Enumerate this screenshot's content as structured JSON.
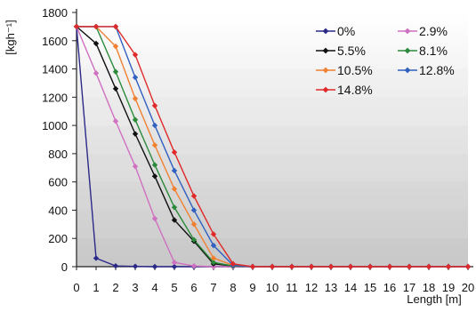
{
  "chart_data": {
    "type": "line",
    "title": "",
    "xlabel": "Length [m]",
    "ylabel": "[kgh⁻¹]",
    "xlim": [
      0,
      20
    ],
    "ylim": [
      0,
      1800
    ],
    "x_ticks": [
      "0",
      "1",
      "2",
      "3",
      "4",
      "5",
      "6",
      "7",
      "8",
      "9",
      "10",
      "11",
      "12",
      "13",
      "14",
      "15",
      "16",
      "17",
      "18",
      "19",
      "20"
    ],
    "y_ticks": [
      "0",
      "200",
      "400",
      "600",
      "800",
      "1000",
      "1200",
      "1400",
      "1600",
      "1800"
    ],
    "legend_position": "top-right",
    "x": [
      0,
      1,
      2,
      3,
      4,
      5,
      6,
      7,
      8,
      9,
      10,
      11,
      12,
      13,
      14,
      15,
      16,
      17,
      18,
      19,
      20
    ],
    "series": [
      {
        "name": "0%",
        "color": "#2b2a8a",
        "values": [
          1700,
          60,
          5,
          2,
          0,
          0,
          0,
          0,
          0,
          0,
          0,
          0,
          0,
          0,
          0,
          0,
          0,
          0,
          0,
          0,
          0
        ]
      },
      {
        "name": "2.9%",
        "color": "#d070c0",
        "values": [
          1700,
          1370,
          1030,
          710,
          340,
          30,
          5,
          0,
          0,
          0,
          0,
          0,
          0,
          0,
          0,
          0,
          0,
          0,
          0,
          0,
          0
        ]
      },
      {
        "name": "5.5%",
        "color": "#111111",
        "values": [
          1700,
          1580,
          1260,
          940,
          640,
          330,
          180,
          20,
          5,
          0,
          0,
          0,
          0,
          0,
          0,
          0,
          0,
          0,
          0,
          0,
          0
        ]
      },
      {
        "name": "8.1%",
        "color": "#2a8a3a",
        "values": [
          1700,
          1700,
          1380,
          1040,
          720,
          420,
          190,
          30,
          5,
          0,
          0,
          0,
          0,
          0,
          0,
          0,
          0,
          0,
          0,
          0,
          0
        ]
      },
      {
        "name": "10.5%",
        "color": "#f08030",
        "values": [
          1700,
          1700,
          1560,
          1190,
          860,
          550,
          300,
          60,
          10,
          0,
          0,
          0,
          0,
          0,
          0,
          0,
          0,
          0,
          0,
          0,
          0
        ]
      },
      {
        "name": "12.8%",
        "color": "#3060c0",
        "values": [
          1700,
          1700,
          1700,
          1340,
          1000,
          680,
          400,
          150,
          10,
          0,
          0,
          0,
          0,
          0,
          0,
          0,
          0,
          0,
          0,
          0,
          0
        ]
      },
      {
        "name": "14.8%",
        "color": "#e02a2a",
        "values": [
          1700,
          1700,
          1700,
          1500,
          1140,
          810,
          500,
          230,
          20,
          0,
          0,
          0,
          0,
          0,
          0,
          0,
          0,
          0,
          0,
          0,
          0
        ]
      }
    ]
  }
}
